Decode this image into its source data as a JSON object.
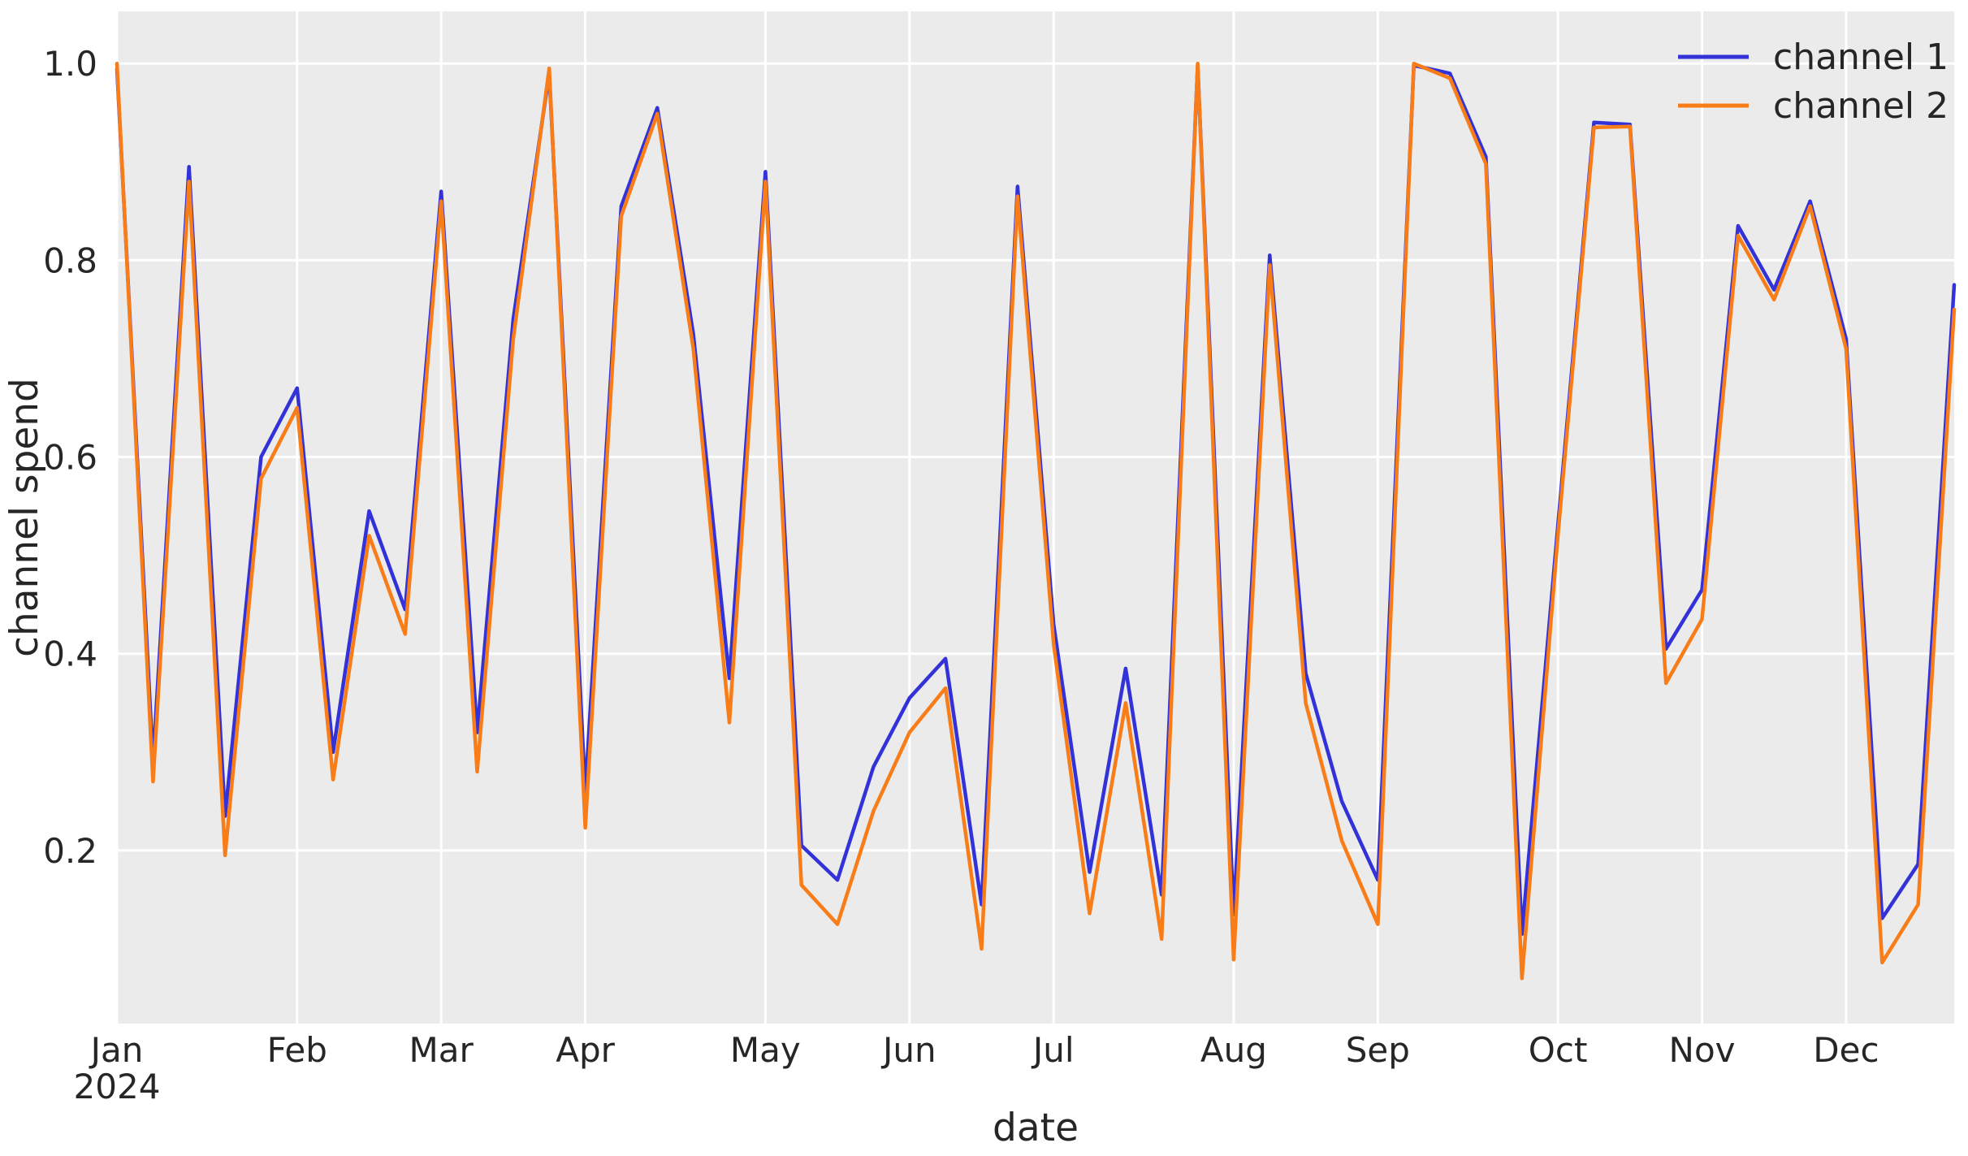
{
  "chart_data": {
    "type": "line",
    "title": "",
    "xlabel": "date",
    "ylabel": "channel spend",
    "x_frequency": "weekly",
    "dates": [
      "2024-01-01",
      "2024-01-08",
      "2024-01-15",
      "2024-01-22",
      "2024-01-29",
      "2024-02-05",
      "2024-02-12",
      "2024-02-19",
      "2024-02-26",
      "2024-03-04",
      "2024-03-11",
      "2024-03-18",
      "2024-03-25",
      "2024-04-01",
      "2024-04-08",
      "2024-04-15",
      "2024-04-22",
      "2024-04-29",
      "2024-05-06",
      "2024-05-13",
      "2024-05-20",
      "2024-05-27",
      "2024-06-03",
      "2024-06-10",
      "2024-06-17",
      "2024-06-24",
      "2024-07-01",
      "2024-07-08",
      "2024-07-15",
      "2024-07-22",
      "2024-07-29",
      "2024-08-05",
      "2024-08-12",
      "2024-08-19",
      "2024-08-26",
      "2024-09-02",
      "2024-09-09",
      "2024-09-16",
      "2024-09-23",
      "2024-09-30",
      "2024-10-07",
      "2024-10-14",
      "2024-10-21",
      "2024-10-28",
      "2024-11-04",
      "2024-11-11",
      "2024-11-18",
      "2024-11-25",
      "2024-12-02",
      "2024-12-09",
      "2024-12-16",
      "2024-12-23"
    ],
    "series": [
      {
        "name": "channel 1",
        "color": "#3232d8",
        "values": [
          0.995,
          0.29,
          0.895,
          0.235,
          0.6,
          0.67,
          0.3,
          0.545,
          0.445,
          0.87,
          0.32,
          0.74,
          0.99,
          0.26,
          0.855,
          0.955,
          0.725,
          0.375,
          0.89,
          0.205,
          0.17,
          0.285,
          0.355,
          0.395,
          0.145,
          0.875,
          0.43,
          0.178,
          0.385,
          0.155,
          0.998,
          0.135,
          0.805,
          0.38,
          0.25,
          0.17,
          0.998,
          0.99,
          0.905,
          0.115,
          0.53,
          0.94,
          0.938,
          0.405,
          0.465,
          0.835,
          0.77,
          0.86,
          0.72,
          0.131,
          0.186,
          0.775
        ]
      },
      {
        "name": "channel 2",
        "color": "#f87d19",
        "values": [
          1.0,
          0.27,
          0.88,
          0.195,
          0.578,
          0.65,
          0.272,
          0.52,
          0.42,
          0.86,
          0.28,
          0.72,
          0.995,
          0.223,
          0.845,
          0.949,
          0.71,
          0.33,
          0.88,
          0.165,
          0.125,
          0.24,
          0.32,
          0.365,
          0.1,
          0.865,
          0.41,
          0.136,
          0.35,
          0.11,
          1.0,
          0.089,
          0.795,
          0.35,
          0.21,
          0.125,
          1.0,
          0.985,
          0.898,
          0.07,
          0.52,
          0.935,
          0.936,
          0.37,
          0.435,
          0.825,
          0.76,
          0.855,
          0.71,
          0.086,
          0.145,
          0.75
        ]
      }
    ],
    "ylim": [
      0.024,
      1.053
    ],
    "y_ticks": [
      {
        "value": 1.0,
        "label": "1.0"
      },
      {
        "value": 0.8,
        "label": "0.8"
      },
      {
        "value": 0.6,
        "label": "0.6"
      },
      {
        "value": 0.4,
        "label": "0.4"
      },
      {
        "value": 0.2,
        "label": "0.2"
      }
    ],
    "x_month_ticks": [
      {
        "week_index": 0,
        "label": "Jan",
        "sublabel": "2024"
      },
      {
        "week_index": 5,
        "label": "Feb"
      },
      {
        "week_index": 9,
        "label": "Mar"
      },
      {
        "week_index": 13,
        "label": "Apr"
      },
      {
        "week_index": 18,
        "label": "May"
      },
      {
        "week_index": 22,
        "label": "Jun"
      },
      {
        "week_index": 26,
        "label": "Jul"
      },
      {
        "week_index": 31,
        "label": "Aug"
      },
      {
        "week_index": 35,
        "label": "Sep"
      },
      {
        "week_index": 40,
        "label": "Oct"
      },
      {
        "week_index": 44,
        "label": "Nov"
      },
      {
        "week_index": 48,
        "label": "Dec"
      }
    ],
    "grid": true,
    "legend_position": "upper right",
    "legend_entries": [
      "channel 1",
      "channel 2"
    ]
  },
  "colors": {
    "figure_bg": "#ffffff",
    "axes_bg": "#ebebeb",
    "grid": "#ffffff",
    "text": "#262626",
    "channel1": "#3232d8",
    "channel2": "#f87d19"
  }
}
